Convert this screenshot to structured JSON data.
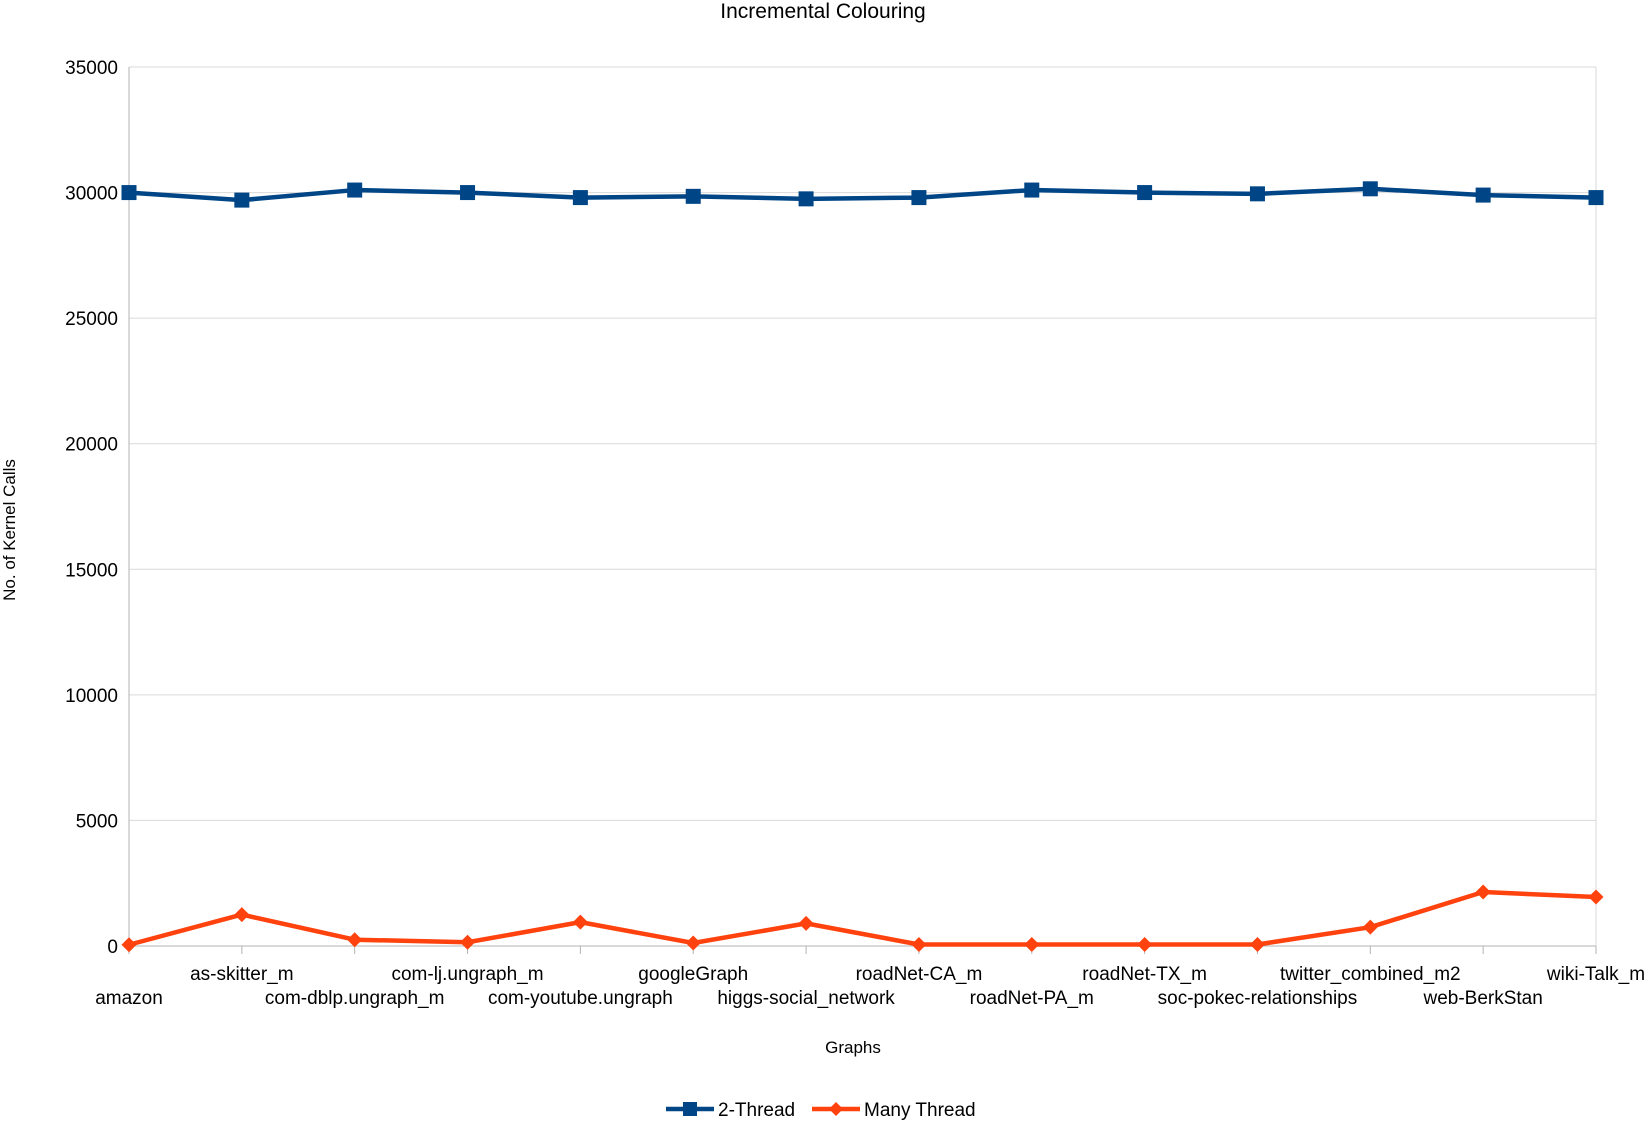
{
  "chart_data": {
    "type": "line",
    "title": "Incremental Colouring",
    "xlabel": "Graphs",
    "ylabel": "No. of Kernel Calls",
    "ylim": [
      0,
      35000
    ],
    "yticks": [
      0,
      5000,
      10000,
      15000,
      20000,
      25000,
      30000,
      35000
    ],
    "grid": true,
    "legend_position": "bottom",
    "categories": [
      "amazon",
      "as-skitter_m",
      "com-dblp.ungraph_m",
      "com-lj.ungraph_m",
      "com-youtube.ungraph",
      "googleGraph",
      "higgs-social_network",
      "roadNet-CA_m",
      "roadNet-PA_m",
      "roadNet-TX_m",
      "soc-pokec-relationships",
      "twitter_combined_m2",
      "web-BerkStan",
      "wiki-Talk_m"
    ],
    "series": [
      {
        "name": "2-Thread",
        "color": "#004586",
        "marker": "square",
        "values": [
          30000,
          29700,
          30100,
          30000,
          29800,
          29850,
          29750,
          29800,
          30100,
          30000,
          29950,
          30150,
          29900,
          29800
        ]
      },
      {
        "name": "Many Thread",
        "color": "#ff420e",
        "marker": "diamond",
        "values": [
          50,
          1250,
          250,
          150,
          950,
          120,
          900,
          60,
          60,
          60,
          60,
          750,
          2150,
          1950
        ]
      }
    ]
  }
}
